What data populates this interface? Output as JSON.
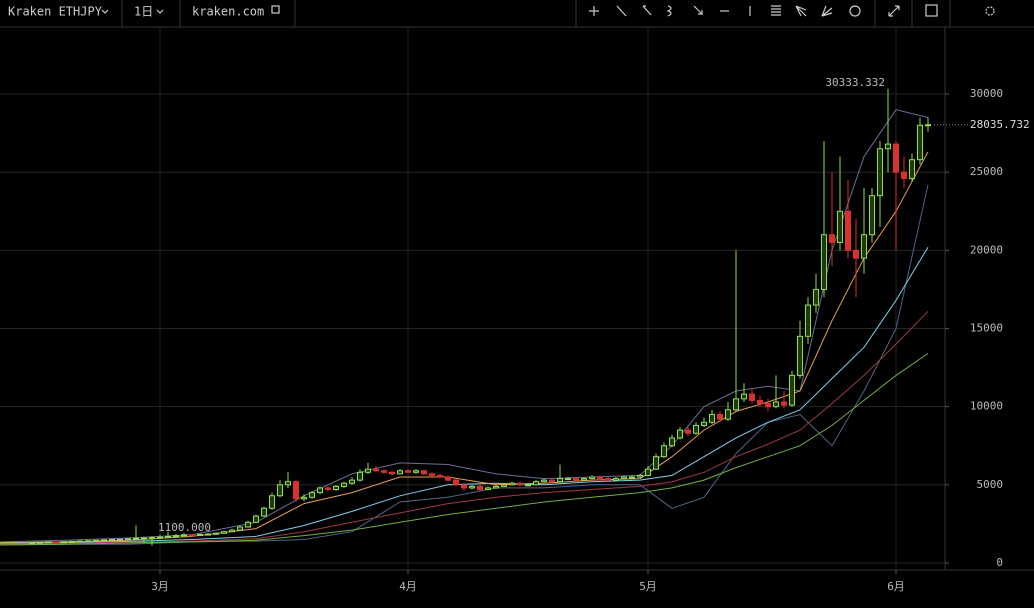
{
  "toolbar": {
    "symbol": "Kraken ETHJPY",
    "interval": "1日",
    "site": "kraken.com"
  },
  "chart_data": {
    "type": "candlestick",
    "categories": [
      null,
      null,
      null,
      null,
      null,
      null,
      null,
      null,
      null,
      null,
      null,
      null,
      null,
      null,
      null,
      null,
      "3月",
      null,
      null,
      null,
      null,
      null,
      null,
      null,
      null,
      null,
      null,
      null,
      null,
      null,
      null,
      null,
      null,
      null,
      null,
      null,
      null,
      null,
      null,
      null,
      null,
      null,
      null,
      null,
      null,
      null,
      null,
      "4月",
      null,
      null,
      null,
      null,
      null,
      null,
      null,
      null,
      null,
      null,
      null,
      null,
      null,
      null,
      null,
      null,
      null,
      null,
      null,
      null,
      null,
      null,
      null,
      null,
      null,
      null,
      null,
      null,
      null,
      "5月",
      null,
      null,
      null,
      null,
      null,
      null,
      null,
      null,
      null,
      null,
      null,
      null,
      null,
      null,
      null,
      null,
      null,
      null,
      null,
      null,
      null,
      null,
      null,
      null,
      null,
      null,
      null,
      null,
      null,
      null,
      "6月",
      null,
      null,
      null,
      null
    ],
    "candles": {
      "up_color": "#8fe04a",
      "down_color": "#d9322b",
      "ohlc": [
        [
          1280,
          1340,
          1260,
          1300
        ],
        [
          1300,
          1350,
          1290,
          1320
        ],
        [
          1320,
          1380,
          1300,
          1350
        ],
        [
          1350,
          1370,
          1310,
          1330
        ],
        [
          1330,
          1390,
          1320,
          1360
        ],
        [
          1360,
          1400,
          1340,
          1380
        ],
        [
          1380,
          1420,
          1360,
          1400
        ],
        [
          1400,
          1450,
          1380,
          1420
        ],
        [
          1420,
          1470,
          1400,
          1450
        ],
        [
          1450,
          1500,
          1420,
          1480
        ],
        [
          1480,
          1520,
          1450,
          1500
        ],
        [
          1500,
          1560,
          1470,
          1520
        ],
        [
          1520,
          1580,
          1490,
          1550
        ],
        [
          1550,
          2400,
          1480,
          1580
        ],
        [
          1580,
          1640,
          1300,
          1600
        ],
        [
          1600,
          1700,
          1100,
          1620
        ],
        [
          1620,
          1800,
          1580,
          1650
        ],
        [
          1650,
          2000,
          1620,
          1700
        ],
        [
          1700,
          1850,
          1650,
          1750
        ],
        [
          1750,
          1900,
          1700,
          1800
        ],
        [
          1800,
          1850,
          1740,
          1780
        ],
        [
          1780,
          1880,
          1750,
          1820
        ],
        [
          1820,
          1900,
          1790,
          1850
        ],
        [
          1850,
          1950,
          1820,
          1900
        ],
        [
          1900,
          2050,
          1870,
          2000
        ],
        [
          2000,
          2200,
          1960,
          2100
        ],
        [
          2100,
          2400,
          2050,
          2300
        ],
        [
          2300,
          2700,
          2250,
          2600
        ],
        [
          2600,
          3100,
          2550,
          3000
        ],
        [
          3000,
          3600,
          2950,
          3500
        ],
        [
          3500,
          4500,
          3400,
          4300
        ],
        [
          4300,
          5300,
          4200,
          5000
        ],
        [
          5000,
          5800,
          4800,
          5200
        ],
        [
          5200,
          5300,
          3900,
          4100
        ],
        [
          4100,
          4400,
          3950,
          4200
        ],
        [
          4200,
          4600,
          4100,
          4500
        ],
        [
          4500,
          4900,
          4400,
          4800
        ],
        [
          4800,
          4900,
          4600,
          4700
        ],
        [
          4700,
          5000,
          4600,
          4900
        ],
        [
          4900,
          5200,
          4800,
          5100
        ],
        [
          5100,
          5500,
          5000,
          5300
        ],
        [
          5300,
          6000,
          5200,
          5800
        ],
        [
          5800,
          6400,
          5700,
          6000
        ],
        [
          6000,
          6200,
          5800,
          5900
        ],
        [
          5900,
          6000,
          5700,
          5800
        ],
        [
          5800,
          5900,
          5600,
          5700
        ],
        [
          5700,
          6000,
          5650,
          5900
        ],
        [
          5900,
          6000,
          5750,
          5800
        ],
        [
          5800,
          6000,
          5700,
          5900
        ],
        [
          5900,
          5950,
          5650,
          5700
        ],
        [
          5700,
          5800,
          5500,
          5600
        ],
        [
          5600,
          5700,
          5400,
          5500
        ],
        [
          5500,
          5600,
          5200,
          5300
        ],
        [
          5300,
          5400,
          4900,
          5000
        ],
        [
          5000,
          5100,
          4600,
          4800
        ],
        [
          4800,
          5000,
          4700,
          4900
        ],
        [
          4900,
          5000,
          4600,
          4700
        ],
        [
          4700,
          4900,
          4650,
          4800
        ],
        [
          4800,
          5000,
          4750,
          4900
        ],
        [
          4900,
          5100,
          4850,
          5000
        ],
        [
          5000,
          5200,
          4950,
          5100
        ],
        [
          5100,
          5200,
          4900,
          5000
        ],
        [
          5000,
          5100,
          4900,
          5000
        ],
        [
          5000,
          5300,
          4950,
          5200
        ],
        [
          5200,
          5400,
          5150,
          5300
        ],
        [
          5300,
          5400,
          5100,
          5200
        ],
        [
          5200,
          6300,
          5150,
          5400
        ],
        [
          5400,
          5500,
          5300,
          5400
        ],
        [
          5400,
          5500,
          5200,
          5300
        ],
        [
          5300,
          5500,
          5250,
          5400
        ],
        [
          5400,
          5600,
          5350,
          5500
        ],
        [
          5500,
          5600,
          5300,
          5400
        ],
        [
          5400,
          5500,
          5200,
          5300
        ],
        [
          5300,
          5500,
          5250,
          5400
        ],
        [
          5400,
          5600,
          5350,
          5500
        ],
        [
          5500,
          5600,
          5400,
          5500
        ],
        [
          5500,
          5700,
          5450,
          5600
        ],
        [
          5600,
          6200,
          5550,
          6000
        ],
        [
          6000,
          7000,
          5950,
          6800
        ],
        [
          6800,
          7700,
          6700,
          7500
        ],
        [
          7500,
          8200,
          7400,
          8000
        ],
        [
          8000,
          8700,
          7900,
          8500
        ],
        [
          8500,
          8700,
          8100,
          8300
        ],
        [
          8300,
          9000,
          8200,
          8800
        ],
        [
          8800,
          9300,
          8700,
          9000
        ],
        [
          9000,
          9800,
          8900,
          9500
        ],
        [
          9500,
          9700,
          9000,
          9200
        ],
        [
          9200,
          10300,
          9100,
          9800
        ],
        [
          9800,
          20000,
          9700,
          10500
        ],
        [
          10500,
          11500,
          10300,
          10800
        ],
        [
          10800,
          11200,
          10200,
          10400
        ],
        [
          10400,
          10700,
          10000,
          10200
        ],
        [
          10200,
          10500,
          9700,
          10000
        ],
        [
          10000,
          12000,
          9900,
          10300
        ],
        [
          10300,
          11000,
          9900,
          10100
        ],
        [
          10100,
          12300,
          10000,
          12000
        ],
        [
          12000,
          15500,
          11800,
          14500
        ],
        [
          14500,
          17000,
          14000,
          16500
        ],
        [
          16500,
          18500,
          16000,
          17500
        ],
        [
          17500,
          27000,
          17000,
          21000
        ],
        [
          21000,
          25000,
          19000,
          20500
        ],
        [
          20500,
          26000,
          20000,
          22500
        ],
        [
          22500,
          24500,
          19500,
          20000
        ],
        [
          20000,
          22000,
          17000,
          19500
        ],
        [
          19500,
          24000,
          18500,
          21000
        ],
        [
          21000,
          24000,
          20500,
          23500
        ],
        [
          23500,
          27000,
          21500,
          26500
        ],
        [
          26500,
          30333.332,
          25000,
          26800
        ],
        [
          26800,
          27000,
          20000,
          25000
        ],
        [
          25000,
          26000,
          24000,
          24600
        ],
        [
          24600,
          26200,
          24400,
          25800
        ],
        [
          25800,
          28500,
          25500,
          28000
        ],
        [
          28000,
          28500,
          27600,
          28035.732
        ]
      ]
    },
    "series": [
      {
        "color": "#6a6f9a",
        "x": [
          -4,
          4,
          12,
          20,
          28,
          34,
          40,
          46,
          52,
          58,
          64,
          70,
          76,
          80,
          84,
          88,
          92,
          96,
          100,
          104,
          108,
          112
        ],
        "values": [
          1350,
          1450,
          1600,
          1800,
          2600,
          4300,
          5700,
          6400,
          6300,
          5700,
          5400,
          5500,
          5600,
          7500,
          10000,
          11000,
          11300,
          11000,
          20000,
          26000,
          29000,
          28500
        ]
      },
      {
        "color": "#4f6688",
        "x": [
          -4,
          4,
          12,
          20,
          28,
          34,
          40,
          46,
          52,
          58,
          64,
          70,
          76,
          80,
          84,
          88,
          92,
          96,
          100,
          104,
          108,
          112
        ],
        "values": [
          1150,
          1200,
          1200,
          1350,
          1400,
          1500,
          2000,
          3900,
          4200,
          4800,
          4800,
          5000,
          5000,
          3500,
          4200,
          7000,
          9000,
          9500,
          7500,
          11000,
          15000,
          24200
        ]
      },
      {
        "color": "#e8a050",
        "x": [
          -4,
          4,
          12,
          20,
          28,
          34,
          40,
          46,
          52,
          58,
          64,
          70,
          76,
          80,
          84,
          88,
          92,
          96,
          100,
          104,
          108,
          112
        ],
        "values": [
          1300,
          1350,
          1450,
          1700,
          2200,
          3800,
          4500,
          5500,
          5500,
          5000,
          5100,
          5300,
          5400,
          6800,
          8500,
          9700,
          10300,
          11000,
          15500,
          19500,
          22500,
          26300
        ]
      },
      {
        "color": "#7ed0f0",
        "x": [
          -4,
          4,
          12,
          20,
          28,
          34,
          40,
          46,
          52,
          58,
          64,
          70,
          76,
          80,
          84,
          88,
          92,
          96,
          100,
          104,
          108,
          112
        ],
        "values": [
          1250,
          1300,
          1380,
          1500,
          1700,
          2400,
          3300,
          4300,
          5000,
          5100,
          5000,
          5200,
          5300,
          5600,
          6800,
          8000,
          9000,
          9800,
          11800,
          13800,
          16800,
          20200
        ]
      },
      {
        "color": "#a03848",
        "x": [
          -4,
          4,
          12,
          20,
          28,
          34,
          40,
          46,
          52,
          58,
          64,
          70,
          76,
          80,
          84,
          88,
          92,
          96,
          100,
          104,
          108,
          112
        ],
        "values": [
          1200,
          1250,
          1320,
          1400,
          1550,
          2000,
          2600,
          3200,
          3800,
          4200,
          4500,
          4700,
          4900,
          5200,
          5800,
          6800,
          7600,
          8500,
          10200,
          12000,
          14000,
          16100
        ]
      },
      {
        "color": "#70b040",
        "x": [
          -4,
          4,
          12,
          20,
          28,
          34,
          40,
          46,
          52,
          58,
          64,
          70,
          76,
          80,
          84,
          88,
          92,
          96,
          100,
          104,
          108,
          112
        ],
        "values": [
          1150,
          1200,
          1280,
          1350,
          1450,
          1750,
          2100,
          2600,
          3100,
          3500,
          3900,
          4200,
          4500,
          4800,
          5300,
          6100,
          6800,
          7500,
          8800,
          10400,
          12000,
          13400
        ]
      }
    ],
    "annotations": [
      {
        "value": 30333.332,
        "label": "30333.332"
      },
      {
        "value": 1100,
        "label": "1100.000"
      }
    ],
    "last_price": {
      "value": 28035.732,
      "label": "28035.732"
    },
    "ylim": [
      -450,
      34290
    ],
    "yticks": [
      0,
      5000,
      10000,
      15000,
      20000,
      25000,
      30000
    ],
    "grid": true
  }
}
